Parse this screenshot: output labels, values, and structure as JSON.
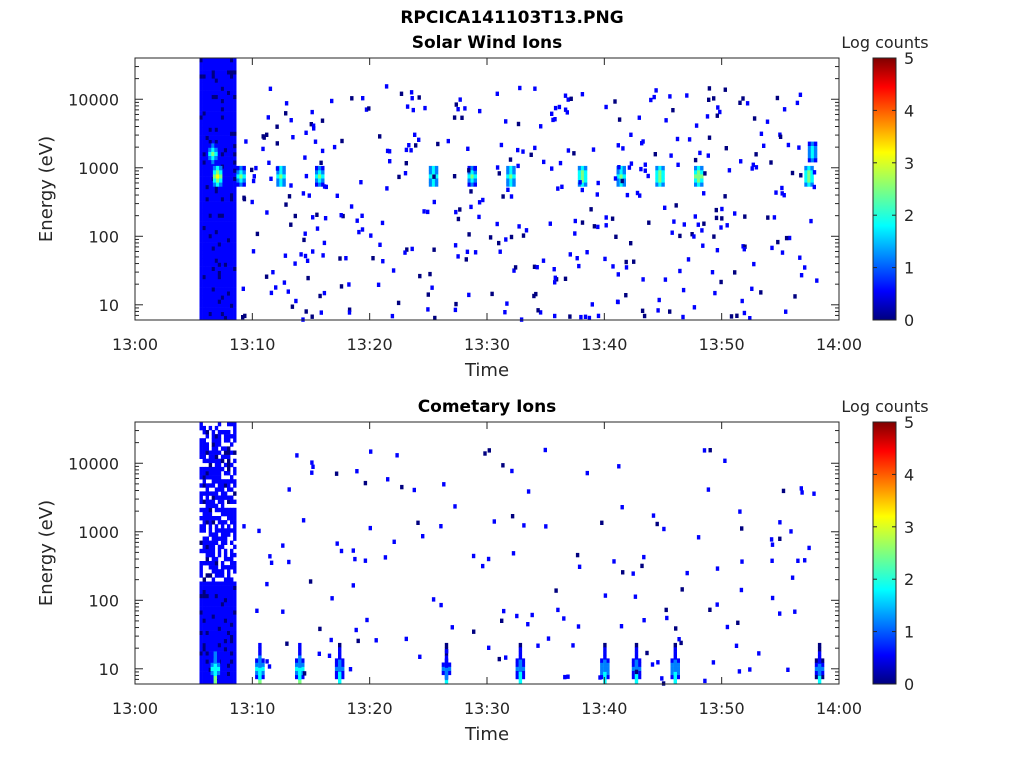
{
  "figure_title": "RPCICA141103T13.PNG",
  "colormap": [
    "#00007f",
    "#0000ff",
    "#007fff",
    "#00ffff",
    "#7fff7f",
    "#ffff00",
    "#ff7f00",
    "#ff0000",
    "#7f0000"
  ],
  "chart_data": [
    {
      "type": "heatmap",
      "title": "Solar Wind Ions",
      "xlabel": "Time",
      "ylabel": "Energy (eV)",
      "xticks": [
        "13:00",
        "13:10",
        "13:20",
        "13:30",
        "13:40",
        "13:50",
        "14:00"
      ],
      "xlim_minutes": [
        0,
        60
      ],
      "yscale": "log",
      "ylim": [
        6,
        40000
      ],
      "yticks": [
        "10",
        "100",
        "1000",
        "10000"
      ],
      "colorbar": {
        "label": "Log counts",
        "range": [
          0,
          5
        ],
        "ticks": [
          "0",
          "1",
          "2",
          "3",
          "4",
          "5"
        ]
      },
      "energy_peaks": [
        {
          "t": 6.9,
          "e": 750,
          "level": 3.0
        },
        {
          "t": 6.5,
          "e": 1600,
          "level": 2.3
        },
        {
          "t": 8.9,
          "e": 750,
          "level": 2.2
        },
        {
          "t": 12.3,
          "e": 750,
          "level": 2.6
        },
        {
          "t": 15.6,
          "e": 750,
          "level": 2.5
        },
        {
          "t": 25.3,
          "e": 750,
          "level": 2.6
        },
        {
          "t": 28.6,
          "e": 750,
          "level": 2.5
        },
        {
          "t": 31.9,
          "e": 750,
          "level": 2.6
        },
        {
          "t": 38.0,
          "e": 750,
          "level": 2.7
        },
        {
          "t": 41.3,
          "e": 750,
          "level": 2.6
        },
        {
          "t": 44.6,
          "e": 750,
          "level": 2.7
        },
        {
          "t": 47.9,
          "e": 750,
          "level": 2.8
        },
        {
          "t": 57.3,
          "e": 750,
          "level": 2.7
        },
        {
          "t": 57.6,
          "e": 1700,
          "level": 2.1
        }
      ]
    },
    {
      "type": "heatmap",
      "title": "Cometary Ions",
      "xlabel": "Time",
      "ylabel": "Energy (eV)",
      "xticks": [
        "13:00",
        "13:10",
        "13:20",
        "13:30",
        "13:40",
        "13:50",
        "14:00"
      ],
      "xlim_minutes": [
        0,
        60
      ],
      "yscale": "log",
      "ylim": [
        6,
        40000
      ],
      "yticks": [
        "10",
        "100",
        "1000",
        "10000"
      ],
      "colorbar": {
        "label": "Log counts",
        "range": [
          0,
          5
        ],
        "ticks": [
          "0",
          "1",
          "2",
          "3",
          "4",
          "5"
        ]
      },
      "energy_peaks": [
        {
          "t": 6.7,
          "e": 10,
          "level": 2.5
        },
        {
          "t": 10.5,
          "e": 10,
          "level": 2.3
        },
        {
          "t": 13.9,
          "e": 10,
          "level": 2.2
        },
        {
          "t": 17.3,
          "e": 10,
          "level": 2.0
        },
        {
          "t": 26.4,
          "e": 10,
          "level": 1.6
        },
        {
          "t": 32.7,
          "e": 10,
          "level": 2.0
        },
        {
          "t": 39.9,
          "e": 10,
          "level": 2.1
        },
        {
          "t": 42.6,
          "e": 10,
          "level": 2.0
        },
        {
          "t": 45.9,
          "e": 10,
          "level": 2.1
        },
        {
          "t": 58.2,
          "e": 10,
          "level": 1.8
        }
      ]
    }
  ]
}
